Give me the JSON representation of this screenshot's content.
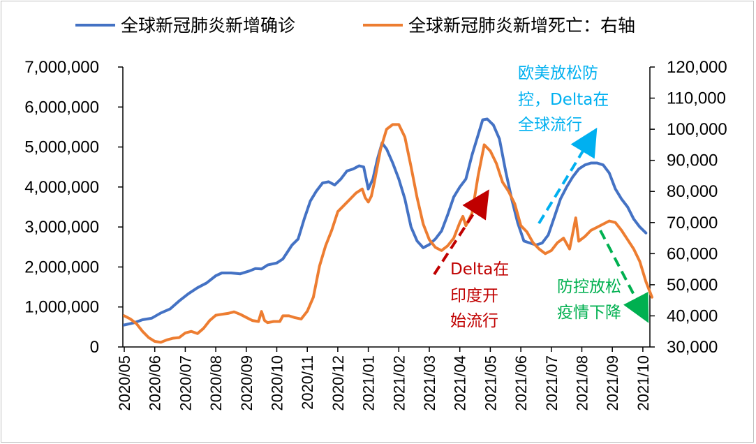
{
  "chart_data": {
    "type": "line",
    "x": [
      "2020/05",
      "2020/06",
      "2020/07",
      "2020/08",
      "2020/09",
      "2020/10",
      "2020/11",
      "2020/12",
      "2021/01",
      "2021/02",
      "2021/03",
      "2021/04",
      "2021/05",
      "2021/06",
      "2021/07",
      "2021/08",
      "2021/09",
      "2021/10"
    ],
    "xlim": [
      "2020/05",
      "2021/10"
    ],
    "y_left": {
      "ylim": [
        0,
        7000000
      ],
      "ticks": [
        0,
        1000000,
        2000000,
        3000000,
        4000000,
        5000000,
        6000000,
        7000000
      ],
      "tick_labels": [
        "0",
        "1,000,000",
        "2,000,000",
        "3,000,000",
        "4,000,000",
        "5,000,000",
        "6,000,000",
        "7,000,000"
      ]
    },
    "y_right": {
      "ylim": [
        30000,
        120000
      ],
      "ticks": [
        30000,
        40000,
        50000,
        60000,
        70000,
        80000,
        90000,
        100000,
        110000,
        120000
      ],
      "tick_labels": [
        "30,000",
        "40,000",
        "50,000",
        "60,000",
        "70,000",
        "80,000",
        "90,000",
        "100,000",
        "110,000",
        "120,000"
      ]
    },
    "series": [
      {
        "name": "全球新冠肺炎新增确诊",
        "axis": "left",
        "color": "#4472c4",
        "points": [
          [
            0,
            550000
          ],
          [
            0.3,
            600000
          ],
          [
            0.6,
            680000
          ],
          [
            0.9,
            720000
          ],
          [
            1.2,
            850000
          ],
          [
            1.5,
            950000
          ],
          [
            1.8,
            1150000
          ],
          [
            2.1,
            1330000
          ],
          [
            2.4,
            1480000
          ],
          [
            2.7,
            1600000
          ],
          [
            3.0,
            1780000
          ],
          [
            3.2,
            1850000
          ],
          [
            3.5,
            1850000
          ],
          [
            3.8,
            1830000
          ],
          [
            4.1,
            1900000
          ],
          [
            4.3,
            1960000
          ],
          [
            4.5,
            1950000
          ],
          [
            4.7,
            2050000
          ],
          [
            5.0,
            2100000
          ],
          [
            5.2,
            2200000
          ],
          [
            5.5,
            2550000
          ],
          [
            5.7,
            2700000
          ],
          [
            5.9,
            3200000
          ],
          [
            6.1,
            3650000
          ],
          [
            6.3,
            3900000
          ],
          [
            6.5,
            4100000
          ],
          [
            6.7,
            4130000
          ],
          [
            6.9,
            4050000
          ],
          [
            7.1,
            4200000
          ],
          [
            7.3,
            4400000
          ],
          [
            7.5,
            4450000
          ],
          [
            7.7,
            4530000
          ],
          [
            7.85,
            4500000
          ],
          [
            8.0,
            3950000
          ],
          [
            8.15,
            4200000
          ],
          [
            8.3,
            4700000
          ],
          [
            8.45,
            5100000
          ],
          [
            8.6,
            4950000
          ],
          [
            8.8,
            4600000
          ],
          [
            9.0,
            4200000
          ],
          [
            9.2,
            3700000
          ],
          [
            9.4,
            3000000
          ],
          [
            9.6,
            2650000
          ],
          [
            9.8,
            2480000
          ],
          [
            10.0,
            2560000
          ],
          [
            10.2,
            2700000
          ],
          [
            10.4,
            2900000
          ],
          [
            10.6,
            3300000
          ],
          [
            10.8,
            3750000
          ],
          [
            11.0,
            4000000
          ],
          [
            11.2,
            4200000
          ],
          [
            11.4,
            4800000
          ],
          [
            11.6,
            5300000
          ],
          [
            11.75,
            5680000
          ],
          [
            11.9,
            5700000
          ],
          [
            12.1,
            5550000
          ],
          [
            12.3,
            5200000
          ],
          [
            12.5,
            4400000
          ],
          [
            12.7,
            3700000
          ],
          [
            12.9,
            3100000
          ],
          [
            13.1,
            2650000
          ],
          [
            13.3,
            2600000
          ],
          [
            13.5,
            2550000
          ],
          [
            13.7,
            2600000
          ],
          [
            13.9,
            2800000
          ],
          [
            14.1,
            3250000
          ],
          [
            14.3,
            3700000
          ],
          [
            14.5,
            4000000
          ],
          [
            14.7,
            4250000
          ],
          [
            14.9,
            4450000
          ],
          [
            15.1,
            4550000
          ],
          [
            15.3,
            4600000
          ],
          [
            15.5,
            4600000
          ],
          [
            15.7,
            4550000
          ],
          [
            15.9,
            4350000
          ],
          [
            16.1,
            3950000
          ],
          [
            16.3,
            3700000
          ],
          [
            16.5,
            3500000
          ],
          [
            16.7,
            3200000
          ],
          [
            16.9,
            3000000
          ],
          [
            17.1,
            2850000
          ]
        ]
      },
      {
        "name": "全球新冠肺炎新增死亡：右轴",
        "axis": "right",
        "color": "#ed7d31",
        "points": [
          [
            0,
            40000
          ],
          [
            0.2,
            39000
          ],
          [
            0.4,
            37500
          ],
          [
            0.6,
            35000
          ],
          [
            0.8,
            33000
          ],
          [
            1.0,
            31800
          ],
          [
            1.2,
            31500
          ],
          [
            1.4,
            32300
          ],
          [
            1.6,
            32800
          ],
          [
            1.8,
            33000
          ],
          [
            2.0,
            34500
          ],
          [
            2.2,
            35000
          ],
          [
            2.4,
            34300
          ],
          [
            2.6,
            36000
          ],
          [
            2.8,
            38500
          ],
          [
            3.0,
            40200
          ],
          [
            3.2,
            40500
          ],
          [
            3.4,
            40800
          ],
          [
            3.6,
            41300
          ],
          [
            3.8,
            40500
          ],
          [
            4.0,
            39500
          ],
          [
            4.2,
            38500
          ],
          [
            4.4,
            38200
          ],
          [
            4.5,
            41400
          ],
          [
            4.6,
            38500
          ],
          [
            4.7,
            37800
          ],
          [
            4.9,
            38200
          ],
          [
            5.1,
            38200
          ],
          [
            5.2,
            40000
          ],
          [
            5.4,
            40000
          ],
          [
            5.6,
            39400
          ],
          [
            5.8,
            39000
          ],
          [
            6.0,
            41500
          ],
          [
            6.2,
            46000
          ],
          [
            6.4,
            56000
          ],
          [
            6.6,
            62500
          ],
          [
            6.8,
            67500
          ],
          [
            7.0,
            73500
          ],
          [
            7.2,
            75500
          ],
          [
            7.4,
            77500
          ],
          [
            7.6,
            79500
          ],
          [
            7.8,
            80800
          ],
          [
            7.9,
            78000
          ],
          [
            8.0,
            76600
          ],
          [
            8.1,
            78500
          ],
          [
            8.2,
            83000
          ],
          [
            8.4,
            93500
          ],
          [
            8.6,
            100000
          ],
          [
            8.8,
            101500
          ],
          [
            9.0,
            101500
          ],
          [
            9.2,
            97500
          ],
          [
            9.4,
            88000
          ],
          [
            9.6,
            78000
          ],
          [
            9.8,
            69500
          ],
          [
            10.0,
            64500
          ],
          [
            10.2,
            62000
          ],
          [
            10.4,
            61000
          ],
          [
            10.6,
            62500
          ],
          [
            10.8,
            65000
          ],
          [
            11.0,
            70000
          ],
          [
            11.1,
            72000
          ],
          [
            11.2,
            69000
          ],
          [
            11.4,
            73000
          ],
          [
            11.6,
            85000
          ],
          [
            11.8,
            95000
          ],
          [
            12.0,
            93000
          ],
          [
            12.2,
            89000
          ],
          [
            12.4,
            83000
          ],
          [
            12.6,
            80000
          ],
          [
            12.8,
            76000
          ],
          [
            13.0,
            69000
          ],
          [
            13.2,
            67000
          ],
          [
            13.4,
            63500
          ],
          [
            13.6,
            61500
          ],
          [
            13.8,
            60000
          ],
          [
            14.0,
            61000
          ],
          [
            14.2,
            63500
          ],
          [
            14.4,
            65000
          ],
          [
            14.6,
            61500
          ],
          [
            14.8,
            71500
          ],
          [
            14.9,
            64000
          ],
          [
            15.1,
            65500
          ],
          [
            15.3,
            67500
          ],
          [
            15.5,
            68500
          ],
          [
            15.7,
            69500
          ],
          [
            15.9,
            70500
          ],
          [
            16.1,
            70000
          ],
          [
            16.3,
            67500
          ],
          [
            16.5,
            64500
          ],
          [
            16.7,
            61500
          ],
          [
            16.9,
            57500
          ],
          [
            17.1,
            51000
          ],
          [
            17.3,
            46000
          ]
        ]
      }
    ],
    "legend": [
      {
        "label": "全球新冠肺炎新增确诊",
        "color": "#4472c4"
      },
      {
        "label": "全球新冠肺炎新增死亡：右轴",
        "color": "#ed7d31"
      }
    ],
    "legend_position": "top",
    "annotations": [
      {
        "lines": [
          "欧美放松防",
          "控，Delta在",
          "全球流行"
        ],
        "color": "#00b0f0"
      },
      {
        "lines": [
          "Delta在",
          "印度开",
          "始流行"
        ],
        "color": "#c00000"
      },
      {
        "lines": [
          "防控放松",
          "疫情下降"
        ],
        "color": "#00b050"
      }
    ]
  }
}
